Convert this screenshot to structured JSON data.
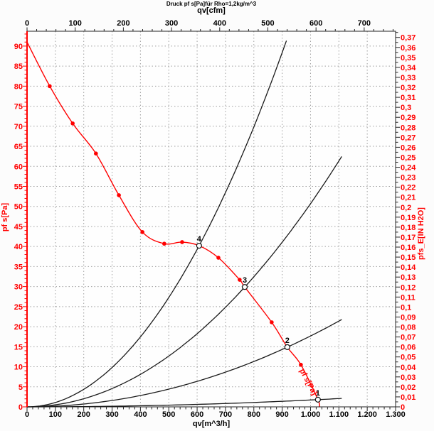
{
  "title": "Druck pf s[Pa]für Rho=1,2kg/m^3",
  "colors": {
    "curve_red": "#ff0000",
    "system_curve_black": "#1a1a1a",
    "grid_gray": "#a0a0a0",
    "frame_black": "#222222"
  },
  "chart_data": {
    "type": "line",
    "title": "Druck pf s[Pa]für Rho=1,2kg/m^3",
    "grid": true,
    "axes": {
      "top": {
        "label": "qv[cfm]",
        "min": 0,
        "max": 765.2,
        "tick_step": 100,
        "minor_step": 20,
        "tick_labels": [
          "0",
          "100",
          "200",
          "300",
          "400",
          "500",
          "600",
          "700"
        ]
      },
      "bottom": {
        "label": "qv[m^3/h]",
        "min": 0,
        "max": 1300,
        "tick_step": 100,
        "minor_step": 20,
        "tick_labels": [
          "0",
          "100",
          "200",
          "300",
          "400",
          "500",
          "600",
          "700",
          "800",
          "900",
          "1.000",
          "1.100",
          "1.200",
          "1.300"
        ]
      },
      "left": {
        "label": "pf s[Pa]",
        "min": 0,
        "max": 93.7,
        "tick_step": 5,
        "minor_step": 1,
        "tick_labels": [
          "0",
          "5",
          "10",
          "15",
          "20",
          "25",
          "30",
          "35",
          "40",
          "45",
          "50",
          "55",
          "60",
          "65",
          "70",
          "75",
          "80",
          "85",
          "90"
        ]
      },
      "right": {
        "label": "pfs_E[IN H2O]",
        "min": 0,
        "max": 0.3762,
        "tick_step": 0.01,
        "minor_step": 0.005,
        "tick_labels": [
          "0",
          "0,01",
          "0,02",
          "0,03",
          "0,04",
          "0,05",
          "0,06",
          "0,07",
          "0,08",
          "0,09",
          "0,1",
          "0,11",
          "0,12",
          "0,13",
          "0,14",
          "0,15",
          "0,16",
          "0,17",
          "0,18",
          "0,19",
          "0,2",
          "0,21",
          "0,22",
          "0,23",
          "0,24",
          "0,25",
          "0,26",
          "0,27",
          "0,28",
          "0,29",
          "0,3",
          "0,31",
          "0,32",
          "0,33",
          "0,34",
          "0,35",
          "0,36",
          "0,37"
        ]
      }
    },
    "fan_curve": {
      "name": "fan pressure curve pf s[Pa]",
      "color": "#ff0000",
      "points": [
        [
          0,
          91
        ],
        [
          80,
          80
        ],
        [
          161,
          70.7
        ],
        [
          243,
          63.2
        ],
        [
          324,
          52.8
        ],
        [
          407,
          43.6
        ],
        [
          484,
          40.7
        ],
        [
          547,
          41.1
        ],
        [
          607,
          40.2
        ],
        [
          675,
          37.2
        ],
        [
          750,
          31.7
        ],
        [
          768,
          29.9
        ],
        [
          863,
          21.1
        ],
        [
          918,
          14.9
        ],
        [
          966,
          10.5
        ],
        [
          1026,
          1.8
        ],
        [
          1031,
          0
        ]
      ],
      "measured_points": [
        [
          80,
          80
        ],
        [
          161,
          70.7
        ],
        [
          243,
          63.2
        ],
        [
          324,
          52.8
        ],
        [
          407,
          43.6
        ],
        [
          484,
          40.7
        ],
        [
          547,
          41.1
        ],
        [
          675,
          37.2
        ],
        [
          750,
          31.7
        ],
        [
          863,
          21.1
        ],
        [
          966,
          10.5
        ]
      ]
    },
    "system_curves": [
      {
        "label": "4",
        "k": 0.0001091,
        "qv_max": 926
      },
      {
        "label": "3",
        "k": 5.069e-05,
        "qv_max": 1112
      },
      {
        "label": "2",
        "k": 1.768e-05,
        "qv_max": 1112
      },
      {
        "label": "1",
        "k": 1.71e-06,
        "qv_max": 1112
      }
    ],
    "operating_points": [
      {
        "label": "4",
        "qv": 607,
        "p": 40.2
      },
      {
        "label": "3",
        "qv": 768,
        "p": 29.9
      },
      {
        "label": "2",
        "qv": 918,
        "p": 14.9
      },
      {
        "label": "1",
        "qv": 1026,
        "p": 1.8
      }
    ],
    "curve_label": {
      "text": "pf s[Pa]",
      "angle_deg": 62
    }
  }
}
